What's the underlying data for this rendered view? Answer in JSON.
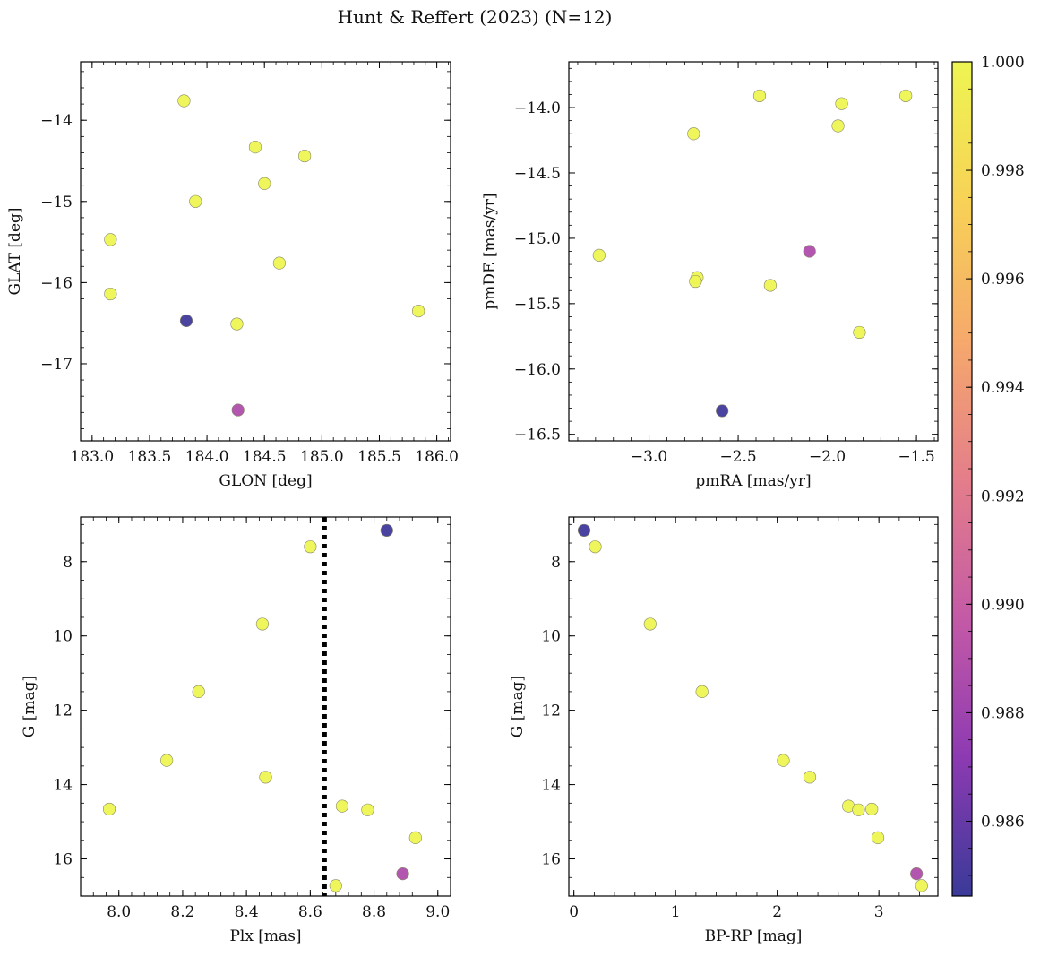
{
  "figure": {
    "title": "Hunt & Reffert (2023) (N=12)"
  },
  "colorbar": {
    "min": 0.98462,
    "max": 1.0,
    "ticks": [
      0.986,
      0.988,
      0.99,
      0.992,
      0.994,
      0.996,
      0.998,
      1.0
    ],
    "tick_labels": [
      "0.986",
      "0.988",
      "0.990",
      "0.992",
      "0.994",
      "0.996",
      "0.998",
      "1.000"
    ],
    "stops": [
      "#3a3a99",
      "#8d3ab2",
      "#c45aa6",
      "#e47e8a",
      "#f6a96c",
      "#f7d256",
      "#eef552"
    ]
  },
  "chart_data": [
    {
      "id": "glon-glat",
      "type": "scatter",
      "xlabel": "GLON [deg]",
      "ylabel": "GLAT [deg]",
      "xlim": [
        182.9,
        186.12
      ],
      "ylim": [
        -17.95,
        -13.28
      ],
      "y_inverted": false,
      "xticks": [
        183.0,
        183.5,
        184.0,
        184.5,
        185.0,
        185.5,
        186.0
      ],
      "xtick_labels": [
        "183.0",
        "183.5",
        "184.0",
        "184.5",
        "185.0",
        "185.5",
        "186.0"
      ],
      "yticks": [
        -14,
        -15,
        -16,
        -17
      ],
      "ytick_labels": [
        "−14",
        "−15",
        "−16",
        "−17"
      ],
      "x": [
        183.8,
        184.42,
        184.85,
        184.5,
        183.9,
        183.16,
        184.63,
        183.16,
        185.84,
        184.26,
        183.82,
        184.27
      ],
      "y": [
        -13.76,
        -14.33,
        -14.44,
        -14.78,
        -15.0,
        -15.47,
        -15.76,
        -16.14,
        -16.35,
        -16.51,
        -16.47,
        -17.57
      ],
      "c": [
        1.0,
        1.0,
        1.0,
        1.0,
        1.0,
        1.0,
        1.0,
        1.0,
        1.0,
        1.0,
        0.9848,
        0.9887
      ]
    },
    {
      "id": "pmra-pmde",
      "type": "scatter",
      "xlabel": "pmRA [mas/yr]",
      "ylabel": "pmDE [mas/yr]",
      "xlim": [
        -3.45,
        -1.38
      ],
      "ylim": [
        -16.55,
        -13.65
      ],
      "y_inverted": false,
      "xticks": [
        -3.0,
        -2.5,
        -2.0,
        -1.5
      ],
      "xtick_labels": [
        "−3.0",
        "−2.5",
        "−2.0",
        "−1.5"
      ],
      "yticks": [
        -14.0,
        -14.5,
        -15.0,
        -15.5,
        -16.0,
        -16.5
      ],
      "ytick_labels": [
        "−14.0",
        "−14.5",
        "−15.0",
        "−15.5",
        "−16.0",
        "−16.5"
      ],
      "x": [
        -2.38,
        -1.56,
        -1.92,
        -1.94,
        -2.75,
        -3.28,
        -2.73,
        -2.74,
        -2.32,
        -1.82,
        -2.1,
        -2.59
      ],
      "y": [
        -13.91,
        -13.91,
        -13.97,
        -14.14,
        -14.2,
        -15.13,
        -15.3,
        -15.33,
        -15.36,
        -15.72,
        -15.1,
        -16.32
      ],
      "c": [
        1.0,
        1.0,
        1.0,
        1.0,
        1.0,
        1.0,
        1.0,
        1.0,
        1.0,
        1.0,
        0.9887,
        0.9848
      ]
    },
    {
      "id": "plx-g",
      "type": "scatter",
      "xlabel": "Plx [mas]",
      "ylabel": "G [mag]",
      "xlim": [
        7.88,
        9.04
      ],
      "ylim": [
        6.8,
        17.0
      ],
      "y_inverted": true,
      "xticks": [
        8.0,
        8.2,
        8.4,
        8.6,
        8.8,
        9.0
      ],
      "xtick_labels": [
        "8.0",
        "8.2",
        "8.4",
        "8.6",
        "8.8",
        "9.0"
      ],
      "yticks": [
        8,
        10,
        12,
        14,
        16
      ],
      "ytick_labels": [
        "8",
        "10",
        "12",
        "14",
        "16"
      ],
      "vline": 8.645,
      "x": [
        8.6,
        8.45,
        8.25,
        8.15,
        8.46,
        7.97,
        8.7,
        8.78,
        8.93,
        8.68,
        8.84,
        8.89
      ],
      "y": [
        7.6,
        9.68,
        11.5,
        13.35,
        13.8,
        14.66,
        14.58,
        14.68,
        15.43,
        16.72,
        7.16,
        16.4
      ],
      "c": [
        1.0,
        1.0,
        1.0,
        1.0,
        1.0,
        1.0,
        1.0,
        1.0,
        1.0,
        1.0,
        0.9848,
        0.9887
      ]
    },
    {
      "id": "bprp-g",
      "type": "scatter",
      "xlabel": "BP-RP [mag]",
      "ylabel": "G [mag]",
      "xlim": [
        -0.05,
        3.58
      ],
      "ylim": [
        6.8,
        17.0
      ],
      "y_inverted": true,
      "xticks": [
        0,
        1,
        2,
        3
      ],
      "xtick_labels": [
        "0",
        "1",
        "2",
        "3"
      ],
      "yticks": [
        8,
        10,
        12,
        14,
        16
      ],
      "ytick_labels": [
        "8",
        "10",
        "12",
        "14",
        "16"
      ],
      "x": [
        0.21,
        0.75,
        1.26,
        2.06,
        2.32,
        2.7,
        2.8,
        2.93,
        2.99,
        3.42,
        0.1,
        3.37
      ],
      "y": [
        7.6,
        9.68,
        11.5,
        13.35,
        13.8,
        14.58,
        14.68,
        14.66,
        15.43,
        16.72,
        7.16,
        16.4
      ],
      "c": [
        1.0,
        1.0,
        1.0,
        1.0,
        1.0,
        1.0,
        1.0,
        1.0,
        1.0,
        1.0,
        0.9848,
        0.9887
      ]
    }
  ]
}
